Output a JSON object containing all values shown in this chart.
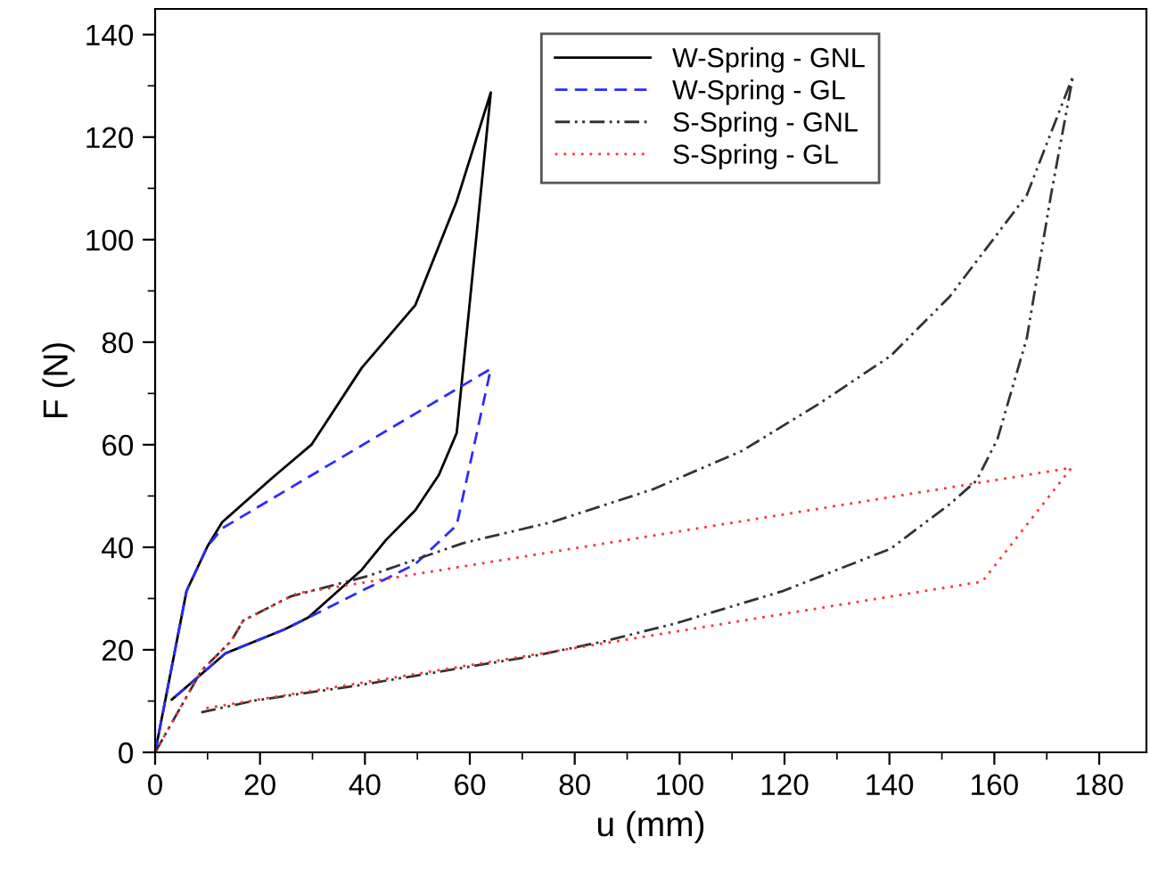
{
  "chart_data": {
    "type": "line",
    "xlabel": "u (mm)",
    "ylabel": "F (N)",
    "xlim": [
      0,
      189
    ],
    "ylim": [
      0,
      145
    ],
    "xticks": [
      0,
      20,
      40,
      60,
      80,
      100,
      120,
      140,
      160,
      180
    ],
    "yticks": [
      0,
      20,
      40,
      60,
      80,
      100,
      120,
      140
    ],
    "grid": false,
    "legend": "top",
    "marker": "none",
    "series": [
      {
        "name": "W-Spring - GNL",
        "color": "#000000",
        "line_style": "solid",
        "x": [
          0,
          6,
          10,
          12.8,
          22.4,
          29.8,
          39.4,
          49.6,
          57.5,
          64,
          57.5,
          54.1,
          49.6,
          44,
          39.4,
          29.2,
          24.7,
          13.4,
          3.2
        ],
        "values": [
          0,
          31.5,
          40.2,
          44.9,
          53.6,
          60,
          75,
          87.2,
          107.5,
          128.7,
          62.3,
          54.1,
          47.2,
          41.4,
          35.6,
          26.3,
          24,
          19.3,
          10.3
        ]
      },
      {
        "name": "W-Spring - GL",
        "color": "#2b2bff",
        "line_style": "dashed",
        "x": [
          0,
          6,
          10,
          12.8,
          64,
          57.5,
          49.6,
          39.4,
          28.1,
          24.7,
          13.4,
          3.2
        ],
        "values": [
          0,
          31.5,
          40.2,
          43.7,
          74.8,
          44.3,
          36.7,
          31.5,
          25.7,
          24,
          19.3,
          10.3
        ]
      },
      {
        "name": "S-Spring - GNL",
        "color": "#333333",
        "line_style": "dashdot",
        "x": [
          0,
          8.8,
          14.5,
          16.8,
          25.8,
          40.6,
          58.7,
          75.6,
          94.9,
          111.9,
          126.6,
          140.2,
          151.5,
          166.2,
          175,
          170.8,
          166.2,
          160.6,
          156.6,
          151.5,
          140.2,
          119.8,
          99.4,
          85.8,
          72.2,
          58.7,
          38.3,
          19,
          8.8
        ],
        "values": [
          0,
          15.9,
          21.7,
          25.7,
          30.4,
          34.4,
          40.8,
          44.9,
          51.3,
          58.8,
          68,
          77.3,
          88.9,
          108.7,
          131.9,
          108.7,
          80.8,
          61.1,
          53,
          48.4,
          39.7,
          31.5,
          25.2,
          21.7,
          18.8,
          16.5,
          13,
          10.1,
          7.8
        ]
      },
      {
        "name": "S-Spring - GL",
        "color": "#ff3333",
        "line_style": "dotted",
        "x": [
          0,
          8.8,
          14.5,
          16.8,
          27,
          174.7,
          157.7,
          9
        ],
        "values": [
          0,
          15.9,
          21.7,
          25.7,
          31,
          55.5,
          33.3,
          8.5
        ]
      }
    ]
  }
}
